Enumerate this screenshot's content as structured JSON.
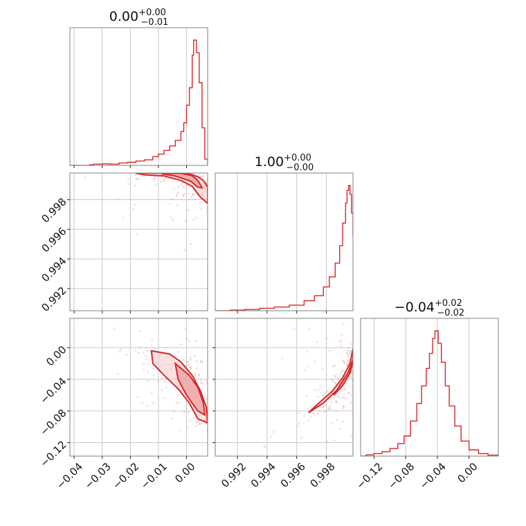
{
  "chart_data": {
    "type": "corner",
    "color": "#d62728",
    "grid": true,
    "parameters": [
      {
        "index": 0,
        "median": 0.0,
        "plus": 0.0,
        "minus": 0.01,
        "title": {
          "main": "0.00",
          "sup": "+0.00",
          "sub": "−0.01"
        },
        "range": [
          -0.0415,
          0.0075
        ]
      },
      {
        "index": 1,
        "median": 1.0,
        "plus": 0.0,
        "minus": 0.0,
        "title": {
          "main": "1.00",
          "sup": "+0.00",
          "sub": "−0.00"
        },
        "range": [
          0.9905,
          0.9998
        ]
      },
      {
        "index": 2,
        "median": -0.04,
        "plus": 0.02,
        "minus": 0.02,
        "title": {
          "main": "−0.04",
          "sup": "+0.02",
          "sub": "−0.02"
        },
        "range": [
          -0.137,
          0.037
        ]
      }
    ],
    "ticks": {
      "p0": {
        "values": [
          -0.04,
          -0.03,
          -0.02,
          -0.01,
          0.0
        ],
        "labels": [
          "−0.04",
          "−0.03",
          "−0.02",
          "−0.01",
          "0.00"
        ]
      },
      "p1": {
        "values": [
          0.992,
          0.994,
          0.996,
          0.998
        ],
        "labels": [
          "0.992",
          "0.994",
          "0.996",
          "0.998"
        ]
      },
      "p2": {
        "values": [
          -0.12,
          -0.08,
          -0.04,
          0.0
        ],
        "labels": [
          "−0.12",
          "−0.08",
          "−0.04",
          "0.00"
        ]
      }
    },
    "histograms": [
      {
        "param": 0,
        "bins": [
          [
            -0.0415,
            0.0
          ],
          [
            -0.0345,
            0.005
          ],
          [
            -0.033,
            0.01
          ],
          [
            -0.03,
            0.012
          ],
          [
            -0.027,
            0.01
          ],
          [
            -0.024,
            0.02
          ],
          [
            -0.021,
            0.025
          ],
          [
            -0.018,
            0.035
          ],
          [
            -0.015,
            0.045
          ],
          [
            -0.012,
            0.07
          ],
          [
            -0.01,
            0.09
          ],
          [
            -0.008,
            0.12
          ],
          [
            -0.006,
            0.155
          ],
          [
            -0.004,
            0.2
          ],
          [
            -0.002,
            0.27
          ],
          [
            -0.001,
            0.34
          ],
          [
            0.0,
            0.48
          ],
          [
            0.001,
            0.62
          ],
          [
            0.002,
            0.88
          ],
          [
            0.0025,
            1.0
          ],
          [
            0.0035,
            0.9
          ],
          [
            0.0045,
            0.66
          ],
          [
            0.0055,
            0.3
          ],
          [
            0.0065,
            0.05
          ],
          [
            0.0075,
            0.0
          ]
        ]
      },
      {
        "param": 1,
        "bins": [
          [
            0.9905,
            0.0
          ],
          [
            0.9915,
            0.005
          ],
          [
            0.9925,
            0.01
          ],
          [
            0.9935,
            0.02
          ],
          [
            0.9945,
            0.03
          ],
          [
            0.9955,
            0.045
          ],
          [
            0.9965,
            0.08
          ],
          [
            0.9972,
            0.12
          ],
          [
            0.9978,
            0.19
          ],
          [
            0.9982,
            0.27
          ],
          [
            0.9986,
            0.38
          ],
          [
            0.9989,
            0.52
          ],
          [
            0.9991,
            0.7
          ],
          [
            0.9993,
            0.86
          ],
          [
            0.9994,
            0.96
          ],
          [
            0.9995,
            1.0
          ],
          [
            0.9996,
            0.93
          ],
          [
            0.9997,
            0.78
          ],
          [
            0.9998,
            0.6
          ]
        ]
      },
      {
        "param": 2,
        "bins": [
          [
            -0.137,
            0.0
          ],
          [
            -0.13,
            0.01
          ],
          [
            -0.12,
            0.02
          ],
          [
            -0.11,
            0.035
          ],
          [
            -0.1,
            0.06
          ],
          [
            -0.09,
            0.1
          ],
          [
            -0.082,
            0.16
          ],
          [
            -0.074,
            0.28
          ],
          [
            -0.066,
            0.42
          ],
          [
            -0.06,
            0.56
          ],
          [
            -0.054,
            0.7
          ],
          [
            -0.05,
            0.82
          ],
          [
            -0.046,
            0.94
          ],
          [
            -0.043,
            1.0
          ],
          [
            -0.039,
            0.9
          ],
          [
            -0.035,
            0.75
          ],
          [
            -0.03,
            0.56
          ],
          [
            -0.025,
            0.4
          ],
          [
            -0.018,
            0.24
          ],
          [
            -0.01,
            0.12
          ],
          [
            0.0,
            0.05
          ],
          [
            0.012,
            0.02
          ],
          [
            0.024,
            0.008
          ],
          [
            0.037,
            0.0
          ]
        ]
      }
    ],
    "contours": [
      {
        "x_param": 0,
        "y_param": 1,
        "outer": [
          [
            -0.018,
            0.99978
          ],
          [
            -0.008,
            0.9998
          ],
          [
            0.0,
            0.9998
          ],
          [
            0.004,
            0.99955
          ],
          [
            0.006,
            0.9993
          ],
          [
            0.0075,
            0.99885
          ],
          [
            0.0075,
            0.99775
          ],
          [
            0.0048,
            0.9982
          ],
          [
            0.002,
            0.9989
          ],
          [
            -0.002,
            0.9993
          ],
          [
            -0.008,
            0.9996
          ],
          [
            -0.015,
            0.99968
          ]
        ],
        "inner": [
          [
            -0.009,
            0.99975
          ],
          [
            -0.002,
            0.99978
          ],
          [
            0.002,
            0.99962
          ],
          [
            0.004,
            0.9993
          ],
          [
            0.0055,
            0.9988
          ],
          [
            0.004,
            0.99885
          ],
          [
            0.0015,
            0.99925
          ],
          [
            -0.004,
            0.9996
          ]
        ]
      },
      {
        "x_param": 0,
        "y_param": 2,
        "outer": [
          [
            -0.0125,
            -0.004
          ],
          [
            -0.006,
            -0.008
          ],
          [
            -0.002,
            -0.018
          ],
          [
            0.002,
            -0.035
          ],
          [
            0.005,
            -0.055
          ],
          [
            0.007,
            -0.075
          ],
          [
            0.0075,
            -0.095
          ],
          [
            0.004,
            -0.09
          ],
          [
            0.001,
            -0.07
          ],
          [
            -0.003,
            -0.052
          ],
          [
            -0.008,
            -0.035
          ],
          [
            -0.012,
            -0.02
          ]
        ],
        "inner": [
          [
            -0.004,
            -0.02
          ],
          [
            0.001,
            -0.035
          ],
          [
            0.004,
            -0.05
          ],
          [
            0.006,
            -0.07
          ],
          [
            0.0065,
            -0.085
          ],
          [
            0.004,
            -0.08
          ],
          [
            0.0,
            -0.06
          ],
          [
            -0.003,
            -0.04
          ]
        ]
      },
      {
        "x_param": 1,
        "y_param": 2,
        "outer": [
          [
            0.9968,
            -0.082
          ],
          [
            0.9978,
            -0.07
          ],
          [
            0.9988,
            -0.052
          ],
          [
            0.9994,
            -0.035
          ],
          [
            0.9998,
            -0.015
          ],
          [
            0.9998,
            -0.002
          ],
          [
            0.9996,
            -0.02
          ],
          [
            0.9991,
            -0.038
          ],
          [
            0.9984,
            -0.055
          ],
          [
            0.9975,
            -0.07
          ]
        ],
        "inner": [
          [
            0.9985,
            -0.06
          ],
          [
            0.9991,
            -0.048
          ],
          [
            0.9996,
            -0.032
          ],
          [
            0.9998,
            -0.018
          ],
          [
            0.9996,
            -0.028
          ],
          [
            0.9991,
            -0.042
          ]
        ]
      }
    ]
  }
}
